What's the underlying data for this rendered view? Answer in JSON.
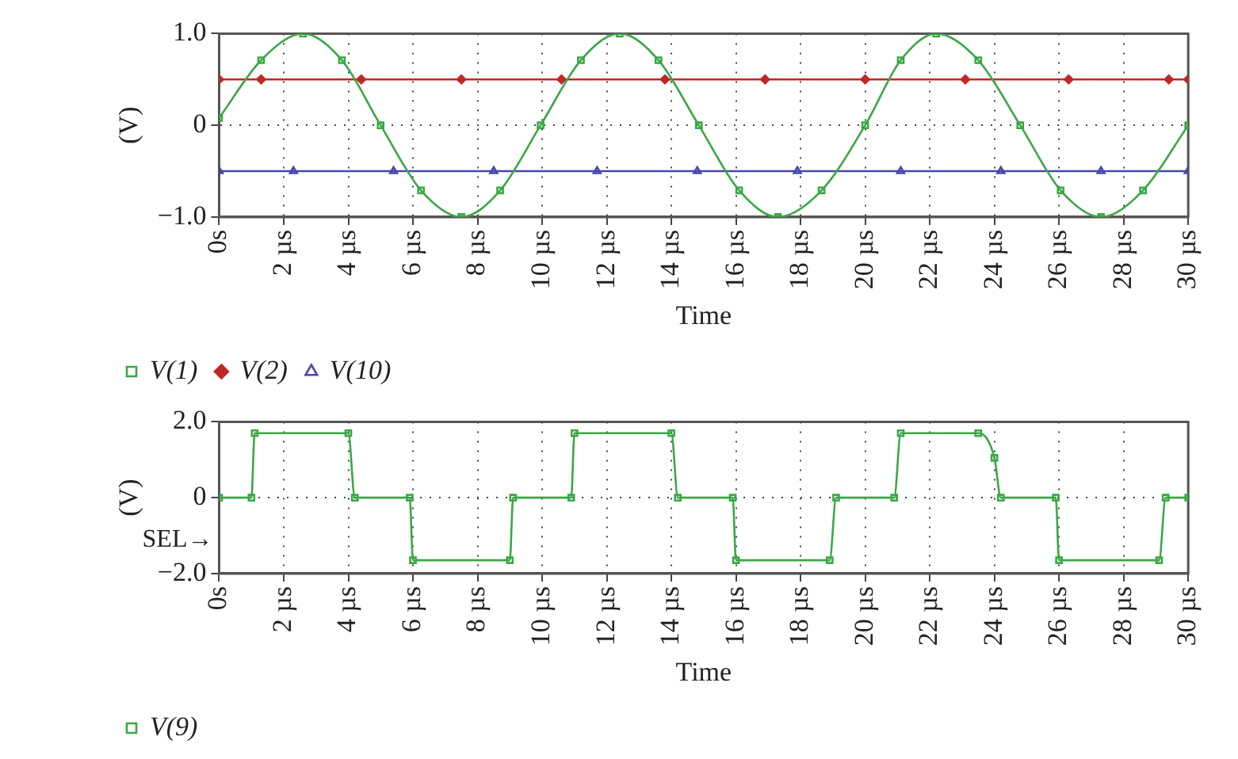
{
  "chart_data": [
    {
      "type": "line",
      "xlabel": "Time",
      "ylabel": "(V)",
      "xlim": [
        0,
        30
      ],
      "ylim": [
        -1,
        1
      ],
      "xticks": [
        {
          "value": 0,
          "label": "0s"
        },
        {
          "value": 2,
          "label": "2 µs"
        },
        {
          "value": 4,
          "label": "4 µs"
        },
        {
          "value": 6,
          "label": "6 µs"
        },
        {
          "value": 8,
          "label": "8 µs"
        },
        {
          "value": 10,
          "label": "10 µs"
        },
        {
          "value": 12,
          "label": "12 µs"
        },
        {
          "value": 14,
          "label": "14 µs"
        },
        {
          "value": 16,
          "label": "16 µs"
        },
        {
          "value": 18,
          "label": "18 µs"
        },
        {
          "value": 20,
          "label": "20 µs"
        },
        {
          "value": 22,
          "label": "22 µs"
        },
        {
          "value": 24,
          "label": "24 µs"
        },
        {
          "value": 26,
          "label": "26 µs"
        },
        {
          "value": 28,
          "label": "28 µs"
        },
        {
          "value": 30,
          "label": "30 µs"
        }
      ],
      "yticks": [
        {
          "value": 1,
          "label": "1.0"
        },
        0,
        {
          "value": -1,
          "label": "−1.0"
        }
      ],
      "grid": true,
      "legend": "bottom left",
      "series": [
        {
          "name": "V(1)",
          "color": "#3aa845",
          "marker": "square",
          "x": [
            0,
            1.3,
            2.6,
            3.8,
            5.0,
            6.25,
            7.5,
            8.7,
            9.95,
            11.2,
            12.4,
            13.6,
            14.85,
            16.1,
            17.3,
            18.65,
            20.0,
            21.1,
            22.2,
            23.5,
            24.8,
            26.05,
            27.3,
            28.6,
            30
          ],
          "values": [
            0.08,
            0.71,
            1.0,
            0.71,
            0,
            -0.71,
            -1.0,
            -0.71,
            0,
            0.71,
            1.0,
            0.71,
            0,
            -0.71,
            -1.0,
            -0.71,
            0,
            0.71,
            1.0,
            0.71,
            0,
            -0.71,
            -1.0,
            -0.71,
            0
          ]
        },
        {
          "name": "V(2)",
          "color": "#c02828",
          "marker": "diamond",
          "x": [
            0,
            1.3,
            4.4,
            7.5,
            10.6,
            13.8,
            16.9,
            20.0,
            23.1,
            26.3,
            29.4,
            30
          ],
          "values": [
            0.5,
            0.5,
            0.5,
            0.5,
            0.5,
            0.5,
            0.5,
            0.5,
            0.5,
            0.5,
            0.5,
            0.5
          ]
        },
        {
          "name": "V(10)",
          "color": "#4848a8",
          "marker": "triangle",
          "x": [
            0,
            2.3,
            5.4,
            8.5,
            11.7,
            14.8,
            17.9,
            21.1,
            24.2,
            27.3,
            30
          ],
          "values": [
            -0.5,
            -0.5,
            -0.5,
            -0.5,
            -0.5,
            -0.5,
            -0.5,
            -0.5,
            -0.5,
            -0.5,
            -0.5
          ]
        }
      ]
    },
    {
      "type": "line",
      "xlabel": "Time",
      "ylabel": "(V)",
      "xlim": [
        0,
        30
      ],
      "ylim": [
        -2,
        2
      ],
      "xticks": [
        {
          "value": 0,
          "label": "0s"
        },
        {
          "value": 2,
          "label": "2 µs"
        },
        {
          "value": 4,
          "label": "4 µs"
        },
        {
          "value": 6,
          "label": "6 µs"
        },
        {
          "value": 8,
          "label": "8 µs"
        },
        {
          "value": 10,
          "label": "10 µs"
        },
        {
          "value": 12,
          "label": "12 µs"
        },
        {
          "value": 14,
          "label": "14 µs"
        },
        {
          "value": 16,
          "label": "16 µs"
        },
        {
          "value": 18,
          "label": "18 µs"
        },
        {
          "value": 20,
          "label": "20 µs"
        },
        {
          "value": 22,
          "label": "22 µs"
        },
        {
          "value": 24,
          "label": "24 µs"
        },
        {
          "value": 26,
          "label": "26 µs"
        },
        {
          "value": 28,
          "label": "28 µs"
        },
        {
          "value": 30,
          "label": "30 µs"
        }
      ],
      "yticks": [
        {
          "value": 2,
          "label": "2.0"
        },
        0,
        {
          "value": -2,
          "label": "−2.0"
        }
      ],
      "grid": true,
      "legend": "bottom left",
      "annotations": [
        "SEL→"
      ],
      "series": [
        {
          "name": "V(9)",
          "color": "#3aa845",
          "marker": "square",
          "x": [
            0,
            1.0,
            1.1,
            4.0,
            4.2,
            5.9,
            6.0,
            9.0,
            9.1,
            10.9,
            11.0,
            14.0,
            14.2,
            15.9,
            16.0,
            18.9,
            19.1,
            20.9,
            21.1,
            23.5,
            24.0,
            24.2,
            25.9,
            26.0,
            29.1,
            29.3,
            30
          ],
          "values": [
            0,
            0,
            1.7,
            1.7,
            0,
            0,
            -1.65,
            -1.65,
            0,
            0,
            1.7,
            1.7,
            0,
            0,
            -1.65,
            -1.65,
            0,
            0,
            1.7,
            1.7,
            1.05,
            0,
            0,
            -1.65,
            -1.65,
            0,
            0
          ]
        }
      ]
    }
  ]
}
